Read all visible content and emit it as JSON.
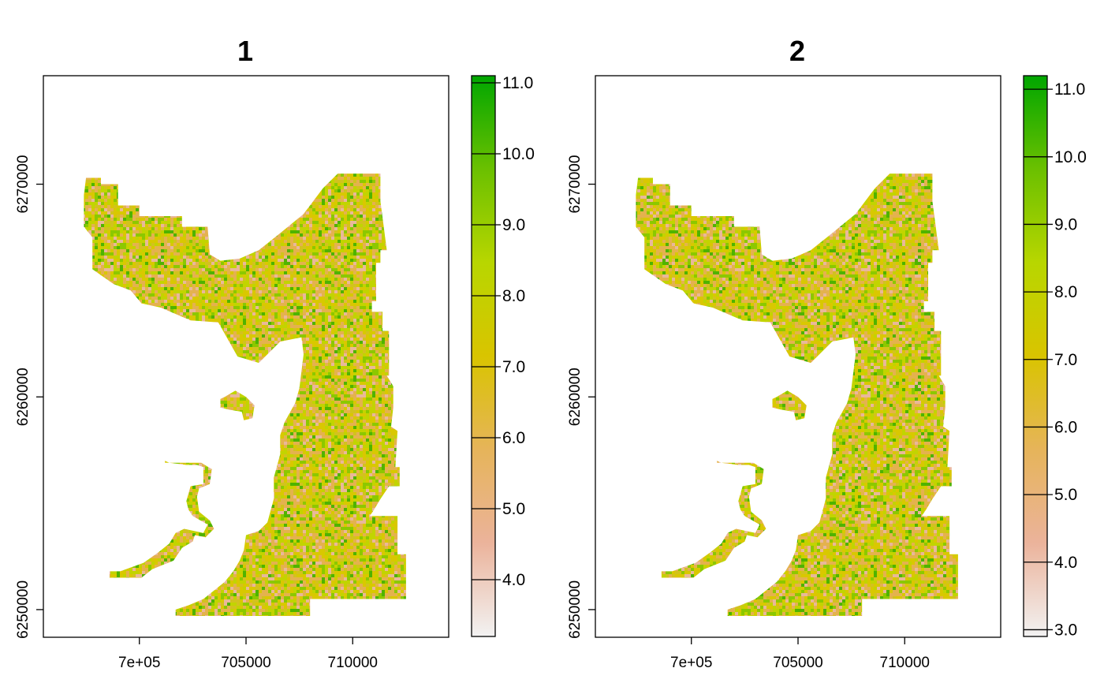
{
  "chart_data": [
    {
      "type": "heatmap",
      "title": "1",
      "xlabel": "",
      "ylabel": "",
      "xlim": [
        695500,
        714500
      ],
      "ylim": [
        6248700,
        6275100
      ],
      "x_ticks": [
        700000,
        705000,
        710000
      ],
      "x_tick_labels": [
        "7e+05",
        "705000",
        "710000"
      ],
      "y_ticks": [
        6250000,
        6260000,
        6270000
      ],
      "y_tick_labels": [
        "6250000",
        "6260000",
        "6270000"
      ],
      "value_range": [
        3.2,
        11.1
      ],
      "colorbar_ticks": [
        4.0,
        5.0,
        6.0,
        7.0,
        8.0,
        9.0,
        10.0,
        11.0
      ],
      "colorbar_labels": [
        "4.0",
        "5.0",
        "6.0",
        "7.0",
        "8.0",
        "9.0",
        "10.0",
        "11.0"
      ],
      "value_distribution": "mostly 5.5 to 8.5",
      "legend_position": "right"
    },
    {
      "type": "heatmap",
      "title": "2",
      "xlabel": "",
      "ylabel": "",
      "xlim": [
        695500,
        714500
      ],
      "ylim": [
        6248700,
        6275100
      ],
      "x_ticks": [
        700000,
        705000,
        710000
      ],
      "x_tick_labels": [
        "7e+05",
        "705000",
        "710000"
      ],
      "y_ticks": [
        6250000,
        6260000,
        6270000
      ],
      "y_tick_labels": [
        "6250000",
        "6260000",
        "6270000"
      ],
      "value_range": [
        2.9,
        11.2
      ],
      "colorbar_ticks": [
        3.0,
        4.0,
        5.0,
        6.0,
        7.0,
        8.0,
        9.0,
        10.0,
        11.0
      ],
      "colorbar_labels": [
        "3.0",
        "4.0",
        "5.0",
        "6.0",
        "7.0",
        "8.0",
        "9.0",
        "10.0",
        "11.0"
      ],
      "value_distribution": "mostly 5.5 to 8.5",
      "legend_position": "right"
    }
  ],
  "colors": {
    "colormap": [
      "#F2F2F2",
      "#EBB39B",
      "#E6B45A",
      "#D9C400",
      "#B8D600",
      "#6BC000",
      "#00A600"
    ],
    "frame": "#000000",
    "background": "#FFFFFF"
  },
  "region_outline": {
    "units": "map coordinates (x, y)",
    "main": [
      [
        697500,
        6270300
      ],
      [
        698200,
        6270300
      ],
      [
        698200,
        6270000
      ],
      [
        699000,
        6270000
      ],
      [
        699000,
        6269000
      ],
      [
        700000,
        6269000
      ],
      [
        700000,
        6268500
      ],
      [
        702000,
        6268500
      ],
      [
        702000,
        6268000
      ],
      [
        703200,
        6268000
      ],
      [
        703300,
        6266700
      ],
      [
        703800,
        6266400
      ],
      [
        704700,
        6266500
      ],
      [
        705600,
        6266900
      ],
      [
        706600,
        6267700
      ],
      [
        707700,
        6268600
      ],
      [
        708600,
        6269800
      ],
      [
        709300,
        6270500
      ],
      [
        711300,
        6270500
      ],
      [
        711300,
        6269200
      ],
      [
        711600,
        6266900
      ],
      [
        711300,
        6266900
      ],
      [
        711300,
        6266300
      ],
      [
        711100,
        6266300
      ],
      [
        711100,
        6264500
      ],
      [
        710900,
        6264500
      ],
      [
        710900,
        6264000
      ],
      [
        711400,
        6264000
      ],
      [
        711400,
        6263100
      ],
      [
        711700,
        6263100
      ],
      [
        711700,
        6262100
      ],
      [
        711700,
        6261000
      ],
      [
        711600,
        6261000
      ],
      [
        711900,
        6260500
      ],
      [
        711900,
        6259500
      ],
      [
        711800,
        6258600
      ],
      [
        712100,
        6258400
      ],
      [
        712000,
        6256700
      ],
      [
        712200,
        6256700
      ],
      [
        712200,
        6255800
      ],
      [
        711700,
        6255800
      ],
      [
        711300,
        6255200
      ],
      [
        711000,
        6254700
      ],
      [
        710800,
        6254400
      ],
      [
        712100,
        6254400
      ],
      [
        712100,
        6252600
      ],
      [
        712500,
        6252600
      ],
      [
        712500,
        6250500
      ],
      [
        708000,
        6250500
      ],
      [
        708000,
        6249700
      ],
      [
        701700,
        6249700
      ],
      [
        701700,
        6250000
      ],
      [
        702300,
        6250200
      ],
      [
        703000,
        6250500
      ],
      [
        703500,
        6250900
      ],
      [
        704000,
        6251300
      ],
      [
        704400,
        6251800
      ],
      [
        704700,
        6252300
      ],
      [
        704900,
        6252800
      ],
      [
        705000,
        6253500
      ],
      [
        705600,
        6253700
      ],
      [
        706000,
        6254100
      ],
      [
        706300,
        6255200
      ],
      [
        706300,
        6256200
      ],
      [
        706600,
        6257300
      ],
      [
        706600,
        6258200
      ],
      [
        706800,
        6258800
      ],
      [
        707300,
        6259700
      ],
      [
        707500,
        6260400
      ],
      [
        707700,
        6262000
      ],
      [
        707600,
        6262800
      ],
      [
        706600,
        6262600
      ],
      [
        705600,
        6261600
      ],
      [
        704600,
        6261900
      ],
      [
        703700,
        6263500
      ],
      [
        702400,
        6263600
      ],
      [
        701000,
        6264200
      ],
      [
        700100,
        6264400
      ],
      [
        699600,
        6265000
      ],
      [
        698800,
        6265300
      ],
      [
        697800,
        6266000
      ],
      [
        697800,
        6267500
      ],
      [
        697400,
        6268000
      ],
      [
        697400,
        6269500
      ]
    ],
    "islet_a": [
      [
        704000,
        6260000
      ],
      [
        704500,
        6260300
      ],
      [
        705000,
        6260000
      ],
      [
        705400,
        6259600
      ],
      [
        705300,
        6259000
      ],
      [
        704900,
        6258900
      ],
      [
        704800,
        6259300
      ],
      [
        704200,
        6259400
      ],
      [
        703800,
        6259500
      ],
      [
        703800,
        6259900
      ]
    ],
    "islet_b": [
      [
        701200,
        6257000
      ],
      [
        701400,
        6256900
      ],
      [
        702200,
        6256800
      ],
      [
        702700,
        6256800
      ],
      [
        703000,
        6256700
      ],
      [
        703000,
        6255900
      ],
      [
        702400,
        6255800
      ],
      [
        702200,
        6255100
      ],
      [
        702300,
        6254700
      ],
      [
        702500,
        6254400
      ],
      [
        703200,
        6254000
      ],
      [
        703000,
        6253600
      ],
      [
        702100,
        6253800
      ],
      [
        701700,
        6253600
      ],
      [
        701400,
        6253100
      ],
      [
        700900,
        6252700
      ],
      [
        700200,
        6252200
      ],
      [
        699100,
        6251800
      ],
      [
        698600,
        6251800
      ],
      [
        698600,
        6251500
      ],
      [
        700100,
        6251500
      ],
      [
        700600,
        6251900
      ],
      [
        701600,
        6252300
      ],
      [
        702000,
        6252900
      ],
      [
        702500,
        6253200
      ],
      [
        702600,
        6253500
      ],
      [
        703100,
        6253400
      ],
      [
        703500,
        6253800
      ],
      [
        703300,
        6254200
      ],
      [
        702800,
        6254600
      ],
      [
        702700,
        6255300
      ],
      [
        702800,
        6255700
      ],
      [
        703300,
        6255900
      ],
      [
        703400,
        6256600
      ],
      [
        702900,
        6256900
      ],
      [
        701800,
        6256900
      ],
      [
        701200,
        6256900
      ]
    ]
  }
}
